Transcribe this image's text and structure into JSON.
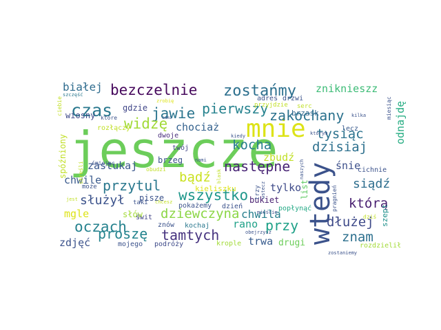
{
  "words": [
    {
      "text": "jeszcze",
      "color": "#6ccd5a"
    },
    {
      "text": "wtedy",
      "color": "#3b528b"
    },
    {
      "text": "mnie",
      "color": "#dde318"
    },
    {
      "text": "czas",
      "color": "#2a788e"
    },
    {
      "text": "bezczelnie",
      "color": "#46085c"
    },
    {
      "text": "zostańmy",
      "color": "#2d708e"
    },
    {
      "text": "białej",
      "color": "#2f6c8e"
    },
    {
      "text": "zakochany",
      "color": "#2c728e"
    },
    {
      "text": "zniknieszz",
      "color": "#3bbb75"
    },
    {
      "text": "jawie",
      "color": "#2b758e"
    },
    {
      "text": "pierwszy",
      "color": "#26828e"
    },
    {
      "text": "widzę",
      "color": "#a2da37"
    },
    {
      "text": "tysiąc",
      "color": "#2c728e"
    },
    {
      "text": "kocha",
      "color": "#287c8e"
    },
    {
      "text": "chociaż",
      "color": "#34618d"
    },
    {
      "text": "dzisiaj",
      "color": "#2d708e"
    },
    {
      "text": "zbudź",
      "color": "#c0df25"
    },
    {
      "text": "odnajdę",
      "color": "#25ac82"
    },
    {
      "text": "następne",
      "color": "#482475"
    },
    {
      "text": "zastukaj",
      "color": "#39568c"
    },
    {
      "text": "śnie",
      "color": "#3c4f8a"
    },
    {
      "text": "bądź",
      "color": "#cae11f"
    },
    {
      "text": "siądź",
      "color": "#2e6e8e"
    },
    {
      "text": "chwile",
      "color": "#38598c"
    },
    {
      "text": "przytul",
      "color": "#2a788e"
    },
    {
      "text": "wszystko",
      "color": "#1f978b"
    },
    {
      "text": "tylko",
      "color": "#3e4a89"
    },
    {
      "text": "służył",
      "color": "#3b528b"
    },
    {
      "text": "którą",
      "color": "#481f70"
    },
    {
      "text": "mgle",
      "color": "#dde318"
    },
    {
      "text": "dziewczyna",
      "color": "#8bd646"
    },
    {
      "text": "oczach",
      "color": "#26828e"
    },
    {
      "text": "chwila",
      "color": "#277f8e"
    },
    {
      "text": "dłużej",
      "color": "#3e4a89"
    },
    {
      "text": "rano",
      "color": "#1fa188"
    },
    {
      "text": "przy",
      "color": "#1fa188"
    },
    {
      "text": "proszę",
      "color": "#25848e"
    },
    {
      "text": "tamtych",
      "color": "#46337f"
    },
    {
      "text": "zdjęć",
      "color": "#3b528b"
    },
    {
      "text": "trwa",
      "color": "#375b8d"
    },
    {
      "text": "znam",
      "color": "#2d708e"
    },
    {
      "text": "szept",
      "color": "#21918c"
    },
    {
      "text": "drugi",
      "color": "#6ccd5a"
    },
    {
      "text": "list",
      "color": "#5ec962"
    },
    {
      "text": "gdzie",
      "color": "#404688"
    },
    {
      "text": "adres",
      "color": "#3b528b"
    },
    {
      "text": "drzwi",
      "color": "#3b528b"
    },
    {
      "text": "wiosny",
      "color": "#3e4a89"
    },
    {
      "text": "brzask",
      "color": "#31688e"
    },
    {
      "text": "lecz",
      "color": "#38598c"
    },
    {
      "text": "cichnie",
      "color": "#3b528b"
    },
    {
      "text": "bukiet",
      "color": "#481f70"
    },
    {
      "text": "brzeg",
      "color": "#3b528b"
    },
    {
      "text": "pisze",
      "color": "#3b528b"
    },
    {
      "text": "słów",
      "color": "#a2da37"
    },
    {
      "text": "świt",
      "color": "#414487"
    },
    {
      "text": "kieliszku",
      "color": "#dde318"
    },
    {
      "text": "spóźniony",
      "color": "#c0df25"
    },
    {
      "text": "rozłączy",
      "color": "#c0df25"
    },
    {
      "text": "dwoje",
      "color": "#472c7a"
    },
    {
      "text": "twój",
      "color": "#414487"
    },
    {
      "text": "może",
      "color": "#3b528b"
    },
    {
      "text": "pokażemy",
      "color": "#3b528b"
    },
    {
      "text": "dzień",
      "color": "#3b528b"
    },
    {
      "text": "popłynąć",
      "color": "#22a884"
    },
    {
      "text": "kochaj",
      "color": "#2a788e"
    },
    {
      "text": "krople",
      "color": "#a2da37"
    },
    {
      "text": "podróży",
      "color": "#3e4a89"
    },
    {
      "text": "mojego",
      "color": "#3b528b"
    },
    {
      "text": "znów",
      "color": "#3b528b"
    },
    {
      "text": "rozdzielił",
      "color": "#a2da37"
    },
    {
      "text": "zostaniemy",
      "color": "#3b528b"
    },
    {
      "text": "szczęść",
      "color": "#2a788e"
    },
    {
      "text": "zrobię",
      "color": "#dde318"
    },
    {
      "text": "sami",
      "color": "#3b528b"
    },
    {
      "text": "przyjdzie",
      "color": "#c0df25"
    },
    {
      "text": "serc",
      "color": "#c0df25"
    },
    {
      "text": "kilka",
      "color": "#3b528b"
    },
    {
      "text": "miesiąc",
      "color": "#3b528b"
    },
    {
      "text": "ciebie",
      "color": "#c0df25"
    },
    {
      "text": "które",
      "color": "#3b528b"
    },
    {
      "text": "skreśli",
      "color": "#c0df25"
    },
    {
      "text": "śmiejąc",
      "color": "#3b528b"
    },
    {
      "text": "kiedy",
      "color": "#3b528b"
    },
    {
      "text": "którym",
      "color": "#3b528b"
    },
    {
      "text": "nami",
      "color": "#3b528b"
    },
    {
      "text": "blask",
      "color": "#c0df25"
    },
    {
      "text": "obudzi",
      "color": "#c0df25"
    },
    {
      "text": "jest",
      "color": "#c0df25"
    },
    {
      "text": "taki",
      "color": "#3b528b"
    },
    {
      "text": "chcesz",
      "color": "#c0df25"
    },
    {
      "text": "trzy",
      "color": "#3b528b"
    },
    {
      "text": "wstecz",
      "color": "#3b528b"
    },
    {
      "text": "mieście",
      "color": "#3b528b"
    },
    {
      "text": "obejrzysz",
      "color": "#3b528b"
    },
    {
      "text": "pragnień",
      "color": "#3b528b"
    },
    {
      "text": "dziś",
      "color": "#c0df25"
    },
    {
      "text": "naszych",
      "color": "#3b528b"
    }
  ]
}
